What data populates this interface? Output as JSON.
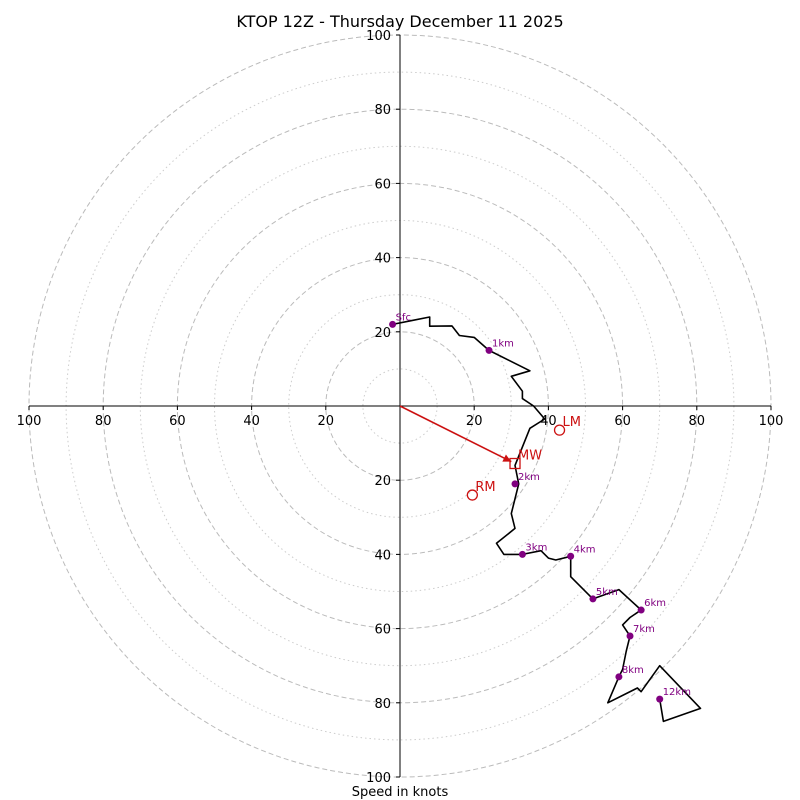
{
  "chart_data": {
    "type": "hodograph",
    "title": "KTOP 12Z - Thursday December 11 2025",
    "xlabel": "Speed in knots",
    "units": "knots",
    "axis_range": [
      -100,
      100
    ],
    "ring_major": [
      20,
      40,
      60,
      80,
      100
    ],
    "ring_minor": [
      10,
      30,
      50,
      70,
      90
    ],
    "x_ticks": [
      "100",
      "80",
      "60",
      "40",
      "20",
      "20",
      "40",
      "60",
      "80",
      "100"
    ],
    "x_tick_values": [
      -100,
      -80,
      -60,
      -40,
      -20,
      20,
      40,
      60,
      80,
      100
    ],
    "y_ticks": [
      "100",
      "80",
      "60",
      "40",
      "20",
      "20",
      "40",
      "60",
      "80",
      "100"
    ],
    "y_tick_values": [
      100,
      80,
      60,
      40,
      20,
      -20,
      -40,
      -60,
      -80,
      -100
    ],
    "profile": [
      [
        -2,
        22
      ],
      [
        3,
        23
      ],
      [
        8,
        24
      ],
      [
        8,
        21.5
      ],
      [
        14,
        21.6
      ],
      [
        16,
        19
      ],
      [
        20,
        18.5
      ],
      [
        24,
        15
      ],
      [
        35,
        9.5
      ],
      [
        30,
        8
      ],
      [
        33,
        4
      ],
      [
        33,
        2
      ],
      [
        36,
        0
      ],
      [
        39,
        -3.5
      ],
      [
        35,
        -6
      ],
      [
        31,
        -16
      ],
      [
        32,
        -21
      ],
      [
        30,
        -29
      ],
      [
        31,
        -33
      ],
      [
        26,
        -37
      ],
      [
        28,
        -40
      ],
      [
        33,
        -40
      ],
      [
        38,
        -39
      ],
      [
        40,
        -41
      ],
      [
        42,
        -41.5
      ],
      [
        46,
        -40.5
      ],
      [
        46,
        -46
      ],
      [
        52,
        -52
      ],
      [
        59,
        -49.5
      ],
      [
        65,
        -55
      ],
      [
        62,
        -57
      ],
      [
        60,
        -59
      ],
      [
        62,
        -62
      ],
      [
        61,
        -66
      ],
      [
        60,
        -71
      ],
      [
        59,
        -73
      ],
      [
        56,
        -80
      ],
      [
        64,
        -76
      ],
      [
        65,
        -77
      ],
      [
        70,
        -70
      ],
      [
        81,
        -81.5
      ],
      [
        71,
        -85
      ],
      [
        70,
        -79
      ]
    ],
    "height_markers": [
      {
        "label": "Sfc",
        "u": -2,
        "v": 22
      },
      {
        "label": "1km",
        "u": 24,
        "v": 15
      },
      {
        "label": "2km",
        "u": 31,
        "v": -21
      },
      {
        "label": "3km",
        "u": 33,
        "v": -40
      },
      {
        "label": "4km",
        "u": 46,
        "v": -40.5
      },
      {
        "label": "5km",
        "u": 52,
        "v": -52
      },
      {
        "label": "6km",
        "u": 65,
        "v": -55
      },
      {
        "label": "7km",
        "u": 62,
        "v": -62
      },
      {
        "label": "8km",
        "u": 59,
        "v": -73
      },
      {
        "label": "12km",
        "u": 70,
        "v": -79
      }
    ],
    "storm_motion": [
      {
        "label": "LM",
        "u": 43,
        "v": -6.5,
        "marker": "circle"
      },
      {
        "label": "MW",
        "u": 31,
        "v": -15.5,
        "marker": "square"
      },
      {
        "label": "RM",
        "u": 19.5,
        "v": -24,
        "marker": "circle"
      }
    ],
    "motion_vector": {
      "u": 30,
      "v": -15
    },
    "colors": {
      "profile": "#000000",
      "markers": "#800080",
      "storm": "#cc1111",
      "rings": "#bbbbbb",
      "axes": "#000000"
    }
  }
}
